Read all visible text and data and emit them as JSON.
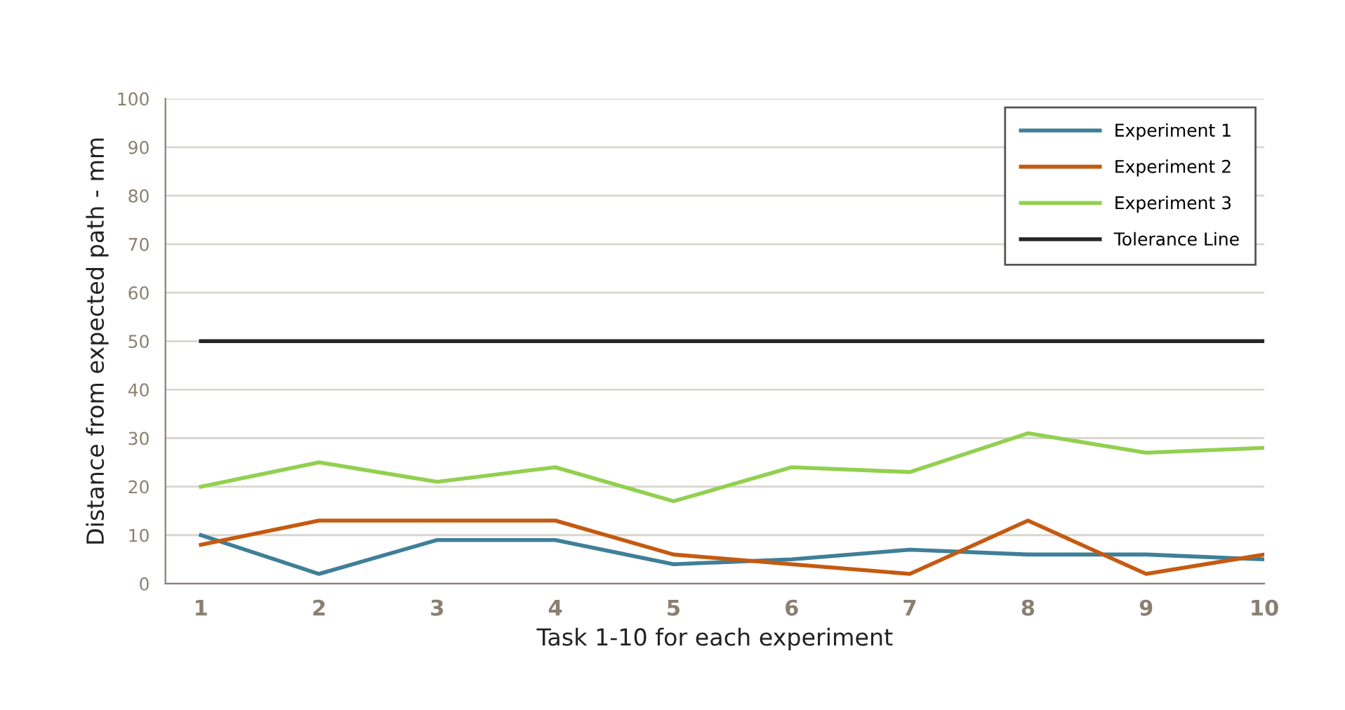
{
  "chart_data": {
    "type": "line",
    "xlabel": "Task 1-10 for each experiment",
    "ylabel": "Distance from expected path - mm",
    "categories": [
      "1",
      "2",
      "3",
      "4",
      "5",
      "6",
      "7",
      "8",
      "9",
      "10"
    ],
    "series": [
      {
        "name": "Experiment 1",
        "color": "#3f7f98",
        "values": [
          10,
          2,
          9,
          9,
          4,
          5,
          7,
          6,
          6,
          5
        ]
      },
      {
        "name": "Experiment 2",
        "color": "#c55a11",
        "values": [
          8,
          13,
          13,
          13,
          6,
          4,
          2,
          13,
          2,
          6
        ]
      },
      {
        "name": "Experiment 3",
        "color": "#92d050",
        "values": [
          20,
          25,
          21,
          24,
          17,
          24,
          23,
          31,
          27,
          28
        ]
      },
      {
        "name": "Tolerance Line",
        "color": "#262626",
        "values": [
          50,
          50,
          50,
          50,
          50,
          50,
          50,
          50,
          50,
          50
        ]
      }
    ],
    "ylim": [
      0,
      100
    ],
    "yticks": [
      0,
      10,
      20,
      30,
      40,
      50,
      60,
      70,
      80,
      90,
      100
    ],
    "grid": "y",
    "legend": "top right",
    "marker": "none",
    "line_style": "solid"
  }
}
